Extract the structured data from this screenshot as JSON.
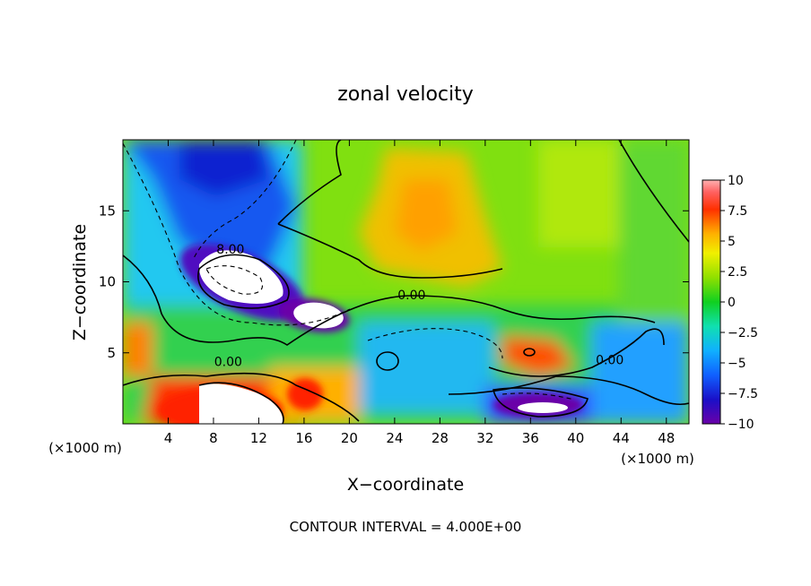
{
  "chart_data": {
    "type": "heatmap",
    "title": "zonal velocity",
    "xlabel": "X−coordinate",
    "ylabel": "Z−coordinate",
    "x_unit_label_left": "(×1000 m)",
    "x_unit_label_right": "(×1000 m)",
    "xlim": [
      0,
      50
    ],
    "ylim": [
      0,
      20
    ],
    "x_ticks": [
      4,
      8,
      12,
      16,
      20,
      24,
      28,
      32,
      36,
      40,
      44,
      48
    ],
    "y_ticks": [
      5,
      10,
      15
    ],
    "colorbar": {
      "range": [
        -10,
        10
      ],
      "tick_values": [
        10,
        7.5,
        5,
        2.5,
        0,
        -2.5,
        -5,
        -7.5,
        -10
      ],
      "tick_labels": [
        "10",
        "7.5",
        "5",
        "2.5",
        "0",
        "−2.5",
        "−5",
        "−7.5",
        "−10"
      ]
    },
    "contour_labels": [
      {
        "text": "8.00",
        "x": 9.5,
        "y": 12.3
      },
      {
        "text": "0.00",
        "x": 25.5,
        "y": 9.1
      },
      {
        "text": "0.00",
        "x": 9.3,
        "y": 4.4
      },
      {
        "text": "0.00",
        "x": 43.0,
        "y": 4.5
      }
    ],
    "features": [
      {
        "label": "strong westward jet",
        "x": 10,
        "y": 10,
        "value": -12
      },
      {
        "label": "westward core",
        "x": 17,
        "y": 7.5,
        "value": -11
      },
      {
        "label": "eastward surface core",
        "x": 9,
        "y": 1.2,
        "value": 12
      },
      {
        "label": "westward surface core",
        "x": 37,
        "y": 1.0,
        "value": -12
      },
      {
        "label": "upper westward region",
        "x": 8,
        "y": 17,
        "value": -8
      },
      {
        "label": "eastward plume",
        "x": 25,
        "y": 14,
        "value": 6
      },
      {
        "label": "eastward patch",
        "x": 35,
        "y": 5.5,
        "value": 7
      }
    ],
    "footer": "CONTOUR INTERVAL = 4.000E+00"
  }
}
